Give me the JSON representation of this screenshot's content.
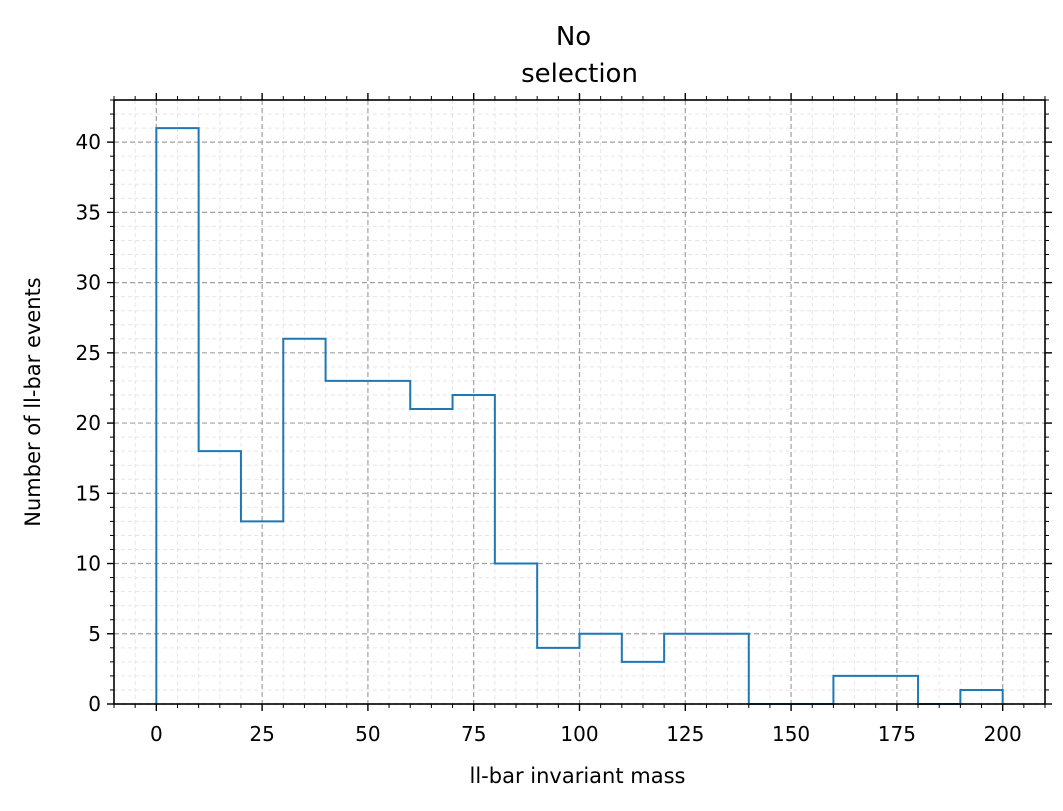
{
  "chart_data": {
    "type": "histogram",
    "title_lines": [
      "No",
      "selection"
    ],
    "xlabel": "ll-bar invariant mass",
    "ylabel": "Number of ll-bar events",
    "bin_width": 10,
    "bins": [
      {
        "start": 0,
        "end": 10,
        "count": 41
      },
      {
        "start": 10,
        "end": 20,
        "count": 18
      },
      {
        "start": 20,
        "end": 30,
        "count": 13
      },
      {
        "start": 30,
        "end": 40,
        "count": 26
      },
      {
        "start": 40,
        "end": 50,
        "count": 23
      },
      {
        "start": 50,
        "end": 60,
        "count": 23
      },
      {
        "start": 60,
        "end": 70,
        "count": 21
      },
      {
        "start": 70,
        "end": 80,
        "count": 22
      },
      {
        "start": 80,
        "end": 90,
        "count": 10
      },
      {
        "start": 90,
        "end": 100,
        "count": 4
      },
      {
        "start": 100,
        "end": 110,
        "count": 5
      },
      {
        "start": 110,
        "end": 120,
        "count": 3
      },
      {
        "start": 120,
        "end": 130,
        "count": 5
      },
      {
        "start": 130,
        "end": 140,
        "count": 5
      },
      {
        "start": 140,
        "end": 150,
        "count": 0
      },
      {
        "start": 150,
        "end": 160,
        "count": 0
      },
      {
        "start": 160,
        "end": 170,
        "count": 2
      },
      {
        "start": 170,
        "end": 180,
        "count": 2
      },
      {
        "start": 180,
        "end": 190,
        "count": 0
      },
      {
        "start": 190,
        "end": 200,
        "count": 1
      }
    ],
    "xlim": [
      -10,
      210
    ],
    "ylim": [
      0,
      43
    ],
    "x_ticks": [
      0,
      25,
      50,
      75,
      100,
      125,
      150,
      175,
      200
    ],
    "x_tick_labels": [
      "0",
      "25",
      "50",
      "75",
      "100",
      "125",
      "150",
      "175",
      "200"
    ],
    "x_minor_step": 5,
    "y_ticks": [
      0,
      5,
      10,
      15,
      20,
      25,
      30,
      35,
      40
    ],
    "y_tick_labels": [
      "0",
      "5",
      "10",
      "15",
      "20",
      "25",
      "30",
      "35",
      "40"
    ],
    "y_minor_step": 1,
    "grid": "major dashed and minor dashed",
    "style": "step outline",
    "colors": {
      "series": "#1f77b4",
      "major_grid": "#a0a0a0",
      "minor_grid": "#e6e6e6",
      "axes": "#000000"
    }
  }
}
